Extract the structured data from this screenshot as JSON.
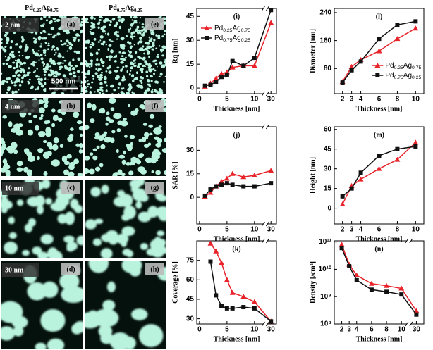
{
  "images": {
    "columns": [
      "Pd0.25Ag0.75",
      "Pd0.75Ag0.25"
    ],
    "rows": [
      {
        "label": "2 nm",
        "panels": [
          "(a)",
          "(e)"
        ]
      },
      {
        "label": "4 nm",
        "panels": [
          "(b)",
          "(f)"
        ]
      },
      {
        "label": "10 nm",
        "panels": [
          "(c)",
          "(g)"
        ]
      },
      {
        "label": "30 nm",
        "panels": [
          "(d)",
          "(h)"
        ]
      }
    ],
    "scale_bar": "500 nm"
  },
  "chart_data": [
    {
      "type": "line",
      "label": "(i)",
      "xlabel": "Thickness [nm]",
      "ylabel": "Rq [nm]",
      "x": [
        1,
        2,
        3,
        4,
        5,
        6,
        8,
        10,
        30
      ],
      "xlim": [
        -0.5,
        31
      ],
      "xbreak": [
        12,
        29
      ],
      "xticks": [
        0,
        5,
        10,
        30
      ],
      "ylim": [
        -3.5,
        50
      ],
      "yticks": [
        0,
        15,
        30,
        45
      ],
      "legend": "upper left",
      "series": [
        {
          "name": "Pd0.25Ag0.75",
          "color": "#e8232a",
          "marker": "triangle",
          "values": [
            1,
            3,
            6,
            9,
            10,
            13,
            14,
            14,
            41
          ]
        },
        {
          "name": "Pd0.75Ag0.25",
          "color": "#111111",
          "marker": "square",
          "values": [
            1.5,
            2,
            4,
            7,
            8,
            17,
            14,
            19,
            49
          ]
        }
      ]
    },
    {
      "type": "line",
      "label": "(l)",
      "xlabel": "Thickness [nm]",
      "ylabel": "Diameter [nm]",
      "x": [
        2,
        3,
        4,
        6,
        8,
        10
      ],
      "xlim": [
        1.1,
        10.9
      ],
      "xticks": [
        2,
        3,
        4,
        6,
        8,
        10
      ],
      "ylim": [
        8,
        252
      ],
      "yticks": [
        80,
        160,
        240
      ],
      "legend": "lower right",
      "series": [
        {
          "name": "Pd0.25Ag0.75",
          "color": "#e8232a",
          "marker": "triangle",
          "values": [
            42,
            85,
            105,
            130,
            165,
            195
          ]
        },
        {
          "name": "Pd0.75Ag0.25",
          "color": "#111111",
          "marker": "square",
          "values": [
            40,
            75,
            100,
            165,
            205,
            215
          ]
        }
      ]
    },
    {
      "type": "line",
      "label": "(j)",
      "xlabel": "Thickness [nm]",
      "ylabel": "SAR [%]",
      "x": [
        1,
        2,
        3,
        4,
        5,
        6,
        8,
        10,
        30
      ],
      "xlim": [
        -0.5,
        31
      ],
      "xbreak": [
        12,
        29
      ],
      "xticks": [
        0,
        5,
        10,
        30
      ],
      "ylim": [
        -17,
        45
      ],
      "yticks": [
        0,
        15,
        30
      ],
      "series": [
        {
          "color": "#e8232a",
          "marker": "triangle",
          "values": [
            0.5,
            3,
            7,
            10,
            12,
            15,
            13,
            14,
            17
          ]
        },
        {
          "color": "#111111",
          "marker": "square",
          "values": [
            1,
            5,
            7,
            8,
            9,
            8,
            7,
            7,
            9
          ]
        }
      ]
    },
    {
      "type": "line",
      "label": "(m)",
      "xlabel": "Thickness [nm]",
      "ylabel": "Height [nm]",
      "x": [
        2,
        3,
        4,
        6,
        8,
        10
      ],
      "xlim": [
        1.1,
        10.9
      ],
      "xticks": [
        2,
        3,
        4,
        6,
        8,
        10
      ],
      "ylim": [
        -12,
        62
      ],
      "yticks": [
        0,
        15,
        30,
        45,
        60
      ],
      "series": [
        {
          "color": "#e8232a",
          "marker": "triangle",
          "values": [
            3,
            17,
            22,
            30,
            37,
            50
          ]
        },
        {
          "color": "#111111",
          "marker": "square",
          "values": [
            9,
            15,
            27,
            40,
            45,
            47
          ]
        }
      ]
    },
    {
      "type": "line",
      "label": "(k)",
      "xlabel": "Thickness [nm]",
      "ylabel": "Coverage [%]",
      "x": [
        2,
        3,
        4,
        5,
        6,
        8,
        10,
        30
      ],
      "xlim": [
        -0.5,
        31
      ],
      "xbreak": [
        12,
        29
      ],
      "xticks": [
        0,
        5,
        10,
        30
      ],
      "ylim": [
        26,
        90
      ],
      "yticks": [
        30,
        45,
        60,
        75
      ],
      "series": [
        {
          "color": "#e8232a",
          "marker": "triangle",
          "values": [
            88,
            82,
            73,
            60,
            50,
            47,
            43,
            28
          ]
        },
        {
          "color": "#111111",
          "marker": "square",
          "values": [
            74,
            48,
            40,
            38,
            38,
            39,
            38,
            28
          ]
        }
      ]
    },
    {
      "type": "line",
      "label": "(n)",
      "xlabel": "Thickness [nm]",
      "ylabel": "Density [/cm²]",
      "x": [
        2,
        3,
        4,
        6,
        8,
        10,
        30
      ],
      "xlim": [
        1,
        31
      ],
      "xbreak": [
        11,
        29
      ],
      "xticks": [
        2,
        3,
        4,
        6,
        8,
        10,
        30
      ],
      "ylim": [
        100000000,
        110000000000
      ],
      "ylog": true,
      "yticks": [
        {
          "value": 100000000,
          "label": "10⁸"
        },
        {
          "value": 1000000000,
          "label": "10⁹"
        },
        {
          "value": 10000000000,
          "label": "10¹⁰"
        },
        {
          "value": 100000000000,
          "label": "10¹¹"
        }
      ],
      "series": [
        {
          "color": "#e8232a",
          "marker": "triangle",
          "values": [
            80000000000,
            15000000000,
            6000000000,
            3000000000,
            2500000000,
            2000000000,
            300000000
          ]
        },
        {
          "color": "#111111",
          "marker": "square",
          "values": [
            60000000000,
            13000000000,
            4000000000,
            1800000000,
            1500000000,
            1200000000,
            220000000
          ]
        }
      ]
    }
  ]
}
